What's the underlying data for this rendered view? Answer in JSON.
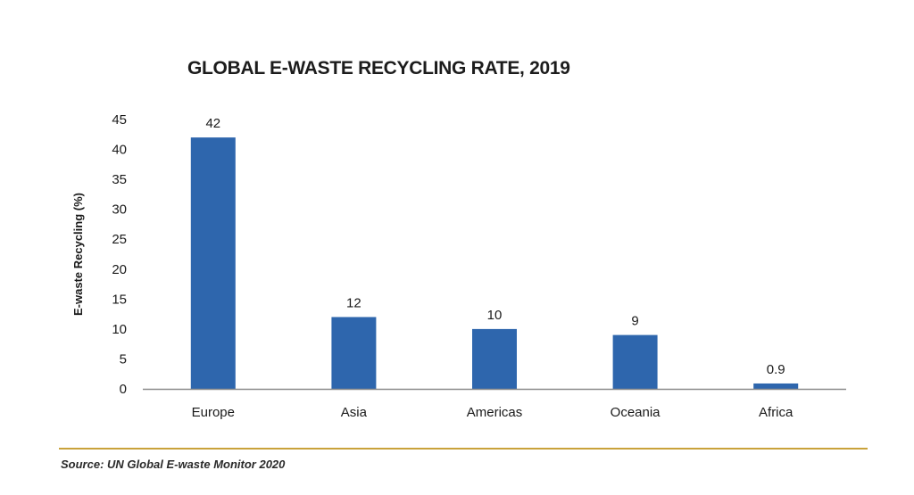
{
  "chart_data": {
    "type": "bar",
    "title": "GLOBAL E-WASTE RECYCLING RATE, 2019",
    "xlabel": "",
    "ylabel": "E-waste Recycling (%)",
    "categories": [
      "Europe",
      "Asia",
      "Americas",
      "Oceania",
      "Africa"
    ],
    "values": [
      42,
      12,
      10,
      9,
      0.9
    ],
    "data_labels": [
      "42",
      "12",
      "10",
      "9",
      "0.9"
    ],
    "ylim": [
      0,
      45
    ],
    "yticks": [
      0,
      5,
      10,
      15,
      20,
      25,
      30,
      35,
      40,
      45
    ],
    "grid": false,
    "legend": "none",
    "bar_color": "#2e66ad",
    "axis_color": "#8a8a8a"
  },
  "footer": {
    "source": "Source: UN Global E-waste Monitor 2020",
    "rule_color": "#c9a23a"
  }
}
